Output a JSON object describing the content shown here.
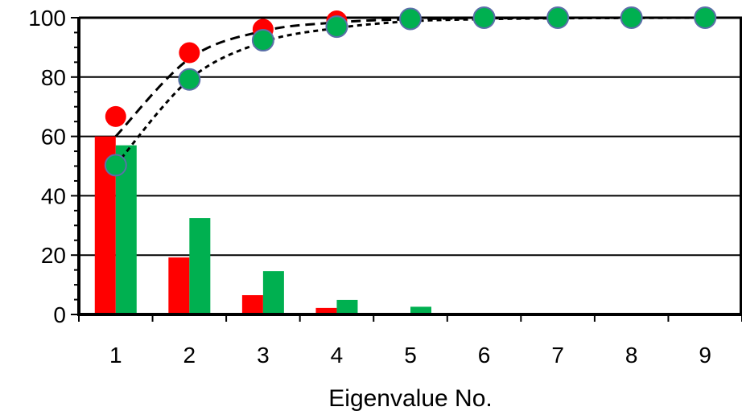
{
  "chart_data": {
    "type": "bar",
    "xlabel": "Eigenvalue No.",
    "ylabel": "",
    "ylim": [
      0,
      100
    ],
    "yticks": [
      0,
      20,
      40,
      60,
      80,
      100
    ],
    "categories": [
      "1",
      "2",
      "3",
      "4",
      "5",
      "6",
      "7",
      "8",
      "9"
    ],
    "grid": "horizontal",
    "colors": {
      "red": "#ff0000",
      "green": "#00b050",
      "marker_edge": "#5b6fa8",
      "axis": "#000000"
    },
    "series": [
      {
        "type": "bar",
        "color": "red",
        "values": [
          60,
          19.2,
          6.5,
          2.2,
          0,
          0,
          0,
          0,
          0
        ]
      },
      {
        "type": "bar",
        "color": "green",
        "values": [
          57,
          32.5,
          14.6,
          4.9,
          2.6,
          0,
          0,
          0,
          0
        ]
      },
      {
        "type": "scatter",
        "color": "red",
        "values": [
          66.7,
          88.2,
          96.1,
          98.9,
          99.6,
          100,
          100,
          100,
          100
        ]
      },
      {
        "type": "scatter",
        "color": "green",
        "values": [
          50.3,
          79.2,
          92.4,
          97.0,
          99.6,
          100,
          100,
          100,
          100
        ]
      },
      {
        "type": "line",
        "style": "dashed",
        "color": "black",
        "values": [
          60,
          86.2,
          95.5,
          98.4,
          99.5,
          99.8,
          99.9,
          100,
          100
        ]
      },
      {
        "type": "line",
        "style": "dotted",
        "color": "black",
        "values": [
          50.3,
          79.2,
          91.8,
          96.5,
          98.8,
          99.5,
          99.8,
          99.9,
          100
        ]
      }
    ]
  }
}
